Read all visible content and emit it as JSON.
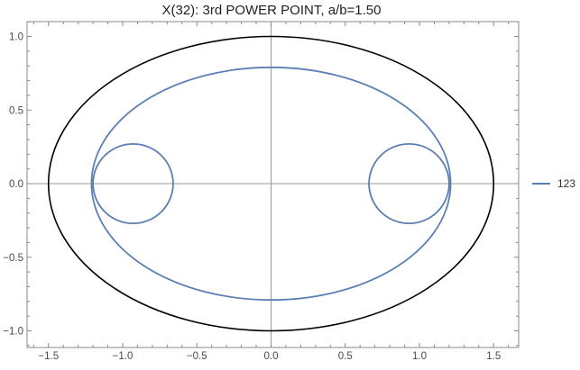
{
  "chart_data": {
    "type": "line",
    "title": "X(32): 3rd POWER POINT, a/b=1.50",
    "xlabel": "",
    "ylabel": "",
    "xlim": [
      -1.6,
      1.65
    ],
    "ylim": [
      -1.1,
      1.1
    ],
    "x_ticks": [
      -1.5,
      -1.0,
      -0.5,
      0.0,
      0.5,
      1.0,
      1.5
    ],
    "x_tick_labels": [
      "−1.5",
      "−1.0",
      "−0.5",
      "0.0",
      "0.5",
      "1.0",
      "1.5"
    ],
    "y_ticks": [
      -1.0,
      -0.5,
      0.0,
      0.5,
      1.0
    ],
    "y_tick_labels": [
      "−1.0",
      "−0.5",
      "0.0",
      "0.5",
      "1.0"
    ],
    "axes_through_origin": true,
    "grid": false,
    "legend_position": "right",
    "legend": [
      {
        "label": "123",
        "color": "#5b7fb5"
      }
    ],
    "colors": {
      "ellipse": "#000000",
      "locus": "#5b7fb5",
      "axes": "#999999",
      "frame": "#888888"
    },
    "series": [
      {
        "kind": "ellipse",
        "color": "#000000",
        "center": [
          0,
          0
        ],
        "semi_axis_x": 1.5,
        "semi_axis_y": 1.0
      },
      {
        "kind": "ellipse",
        "color": "#5b7fb5",
        "center": [
          0,
          0
        ],
        "semi_axis_x": 1.21,
        "semi_axis_y": 0.79
      },
      {
        "kind": "circle",
        "color": "#5b7fb5",
        "center": [
          -0.93,
          0
        ],
        "radius": 0.27
      },
      {
        "kind": "circle",
        "color": "#5b7fb5",
        "center": [
          0.93,
          0
        ],
        "radius": 0.27
      }
    ]
  }
}
